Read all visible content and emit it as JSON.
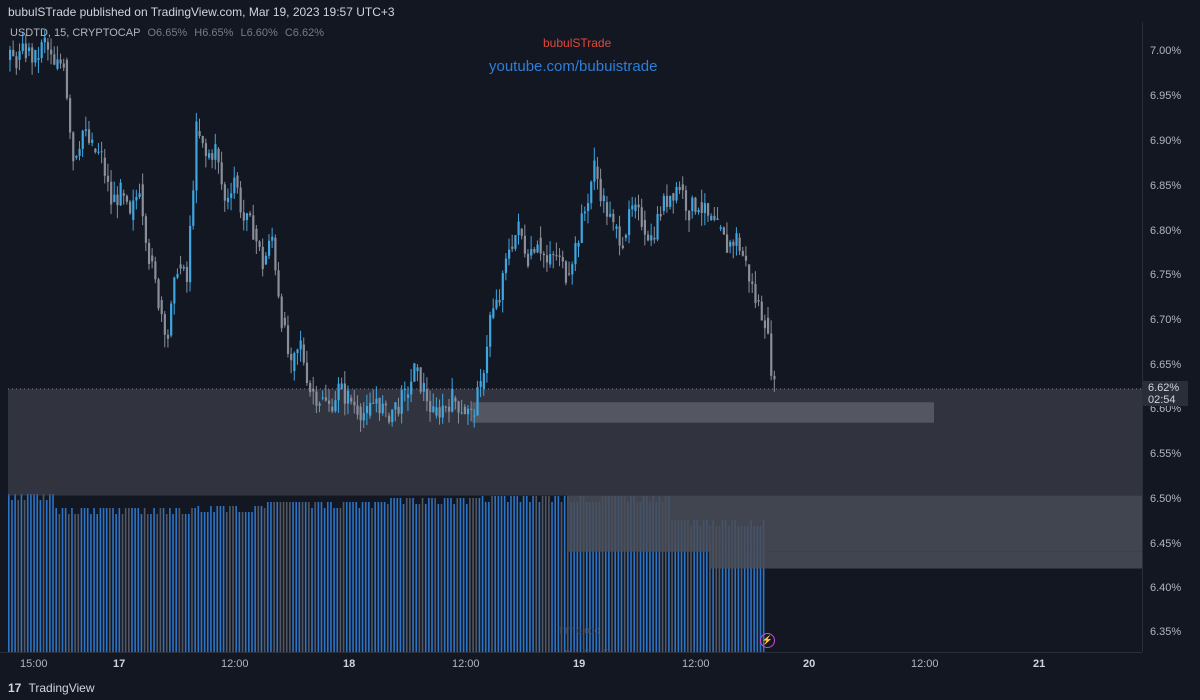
{
  "publish": {
    "text": "bubulSTrade published on TradingView.com, Mar 19, 2023 19:57 UTC+3"
  },
  "legend": {
    "symbol": "USDTD, 15, CRYPTOCAP",
    "open": "O6.65%",
    "high": "H6.65%",
    "low": "L6.60%",
    "close": "C6.62%"
  },
  "watermark": {
    "name": "bubulSTrade",
    "link": "youtube.com/bubuistrade"
  },
  "price_tag": {
    "price": "6.62%",
    "countdown": "02:54"
  },
  "y_ticks": [
    "7.00%",
    "6.95%",
    "6.90%",
    "6.85%",
    "6.80%",
    "6.75%",
    "6.70%",
    "6.65%",
    "6.60%",
    "6.55%",
    "6.50%",
    "6.45%",
    "6.40%",
    "6.35%"
  ],
  "x_ticks": [
    "15:00",
    "17",
    "12:00",
    "18",
    "12:00",
    "19",
    "12:00",
    "20",
    "12:00",
    "21"
  ],
  "footer": {
    "logo": "17",
    "brand": "TradingView"
  },
  "colors": {
    "bg": "#131722",
    "up": "#3ea6e0",
    "down": "#8a8e99",
    "zone": "#4a4d57",
    "volume": "#2f7ed8"
  },
  "chart_data": {
    "type": "candlestick",
    "price_range": [
      6.32,
      7.03
    ],
    "close_path": [
      [
        0,
        6.99
      ],
      [
        1,
        7.0
      ],
      [
        2,
        6.99
      ],
      [
        3,
        7.01
      ],
      [
        4,
        6.98
      ],
      [
        5,
        6.99
      ],
      [
        6,
        6.88
      ],
      [
        7,
        6.91
      ],
      [
        8,
        6.89
      ],
      [
        9,
        6.88
      ],
      [
        10,
        6.83
      ],
      [
        11,
        6.84
      ],
      [
        12,
        6.81
      ],
      [
        13,
        6.85
      ],
      [
        14,
        6.77
      ],
      [
        15,
        6.72
      ],
      [
        16,
        6.68
      ],
      [
        17,
        6.76
      ],
      [
        18,
        6.74
      ],
      [
        19,
        6.91
      ],
      [
        20,
        6.88
      ],
      [
        21,
        6.89
      ],
      [
        22,
        6.83
      ],
      [
        23,
        6.86
      ],
      [
        24,
        6.81
      ],
      [
        25,
        6.8
      ],
      [
        26,
        6.76
      ],
      [
        27,
        6.79
      ],
      [
        28,
        6.7
      ],
      [
        29,
        6.64
      ],
      [
        30,
        6.67
      ],
      [
        31,
        6.62
      ],
      [
        32,
        6.61
      ],
      [
        33,
        6.6
      ],
      [
        34,
        6.62
      ],
      [
        35,
        6.61
      ],
      [
        36,
        6.6
      ],
      [
        37,
        6.59
      ],
      [
        38,
        6.61
      ],
      [
        39,
        6.59
      ],
      [
        40,
        6.6
      ],
      [
        41,
        6.61
      ],
      [
        42,
        6.64
      ],
      [
        43,
        6.62
      ],
      [
        44,
        6.59
      ],
      [
        45,
        6.6
      ],
      [
        46,
        6.61
      ],
      [
        47,
        6.6
      ],
      [
        48,
        6.59
      ],
      [
        49,
        6.62
      ],
      [
        50,
        6.7
      ],
      [
        51,
        6.72
      ],
      [
        52,
        6.78
      ],
      [
        53,
        6.8
      ],
      [
        54,
        6.77
      ],
      [
        55,
        6.79
      ],
      [
        56,
        6.76
      ],
      [
        57,
        6.77
      ],
      [
        58,
        6.75
      ],
      [
        59,
        6.78
      ],
      [
        60,
        6.82
      ],
      [
        61,
        6.87
      ],
      [
        62,
        6.83
      ],
      [
        63,
        6.8
      ],
      [
        64,
        6.79
      ],
      [
        65,
        6.82
      ],
      [
        66,
        6.81
      ],
      [
        67,
        6.79
      ],
      [
        68,
        6.82
      ],
      [
        69,
        6.84
      ],
      [
        70,
        6.85
      ],
      [
        71,
        6.82
      ],
      [
        72,
        6.83
      ],
      [
        73,
        6.81
      ],
      [
        74,
        6.8
      ],
      [
        75,
        6.78
      ],
      [
        76,
        6.79
      ],
      [
        77,
        6.76
      ],
      [
        78,
        6.72
      ],
      [
        79,
        6.7
      ],
      [
        80,
        6.62
      ]
    ],
    "zones": [
      {
        "from_bar": 0,
        "to_bar": 112,
        "top": 6.62,
        "bottom": 6.5
      },
      {
        "from_bar": 49,
        "to_bar": 89,
        "top": 6.605,
        "bottom": 6.582
      },
      {
        "from_bar": 59,
        "to_bar": 112,
        "top": 6.5,
        "bottom": 6.437
      },
      {
        "from_bar": 74,
        "to_bar": 112,
        "top": 6.437,
        "bottom": 6.418
      }
    ],
    "current_price": 6.62
  }
}
